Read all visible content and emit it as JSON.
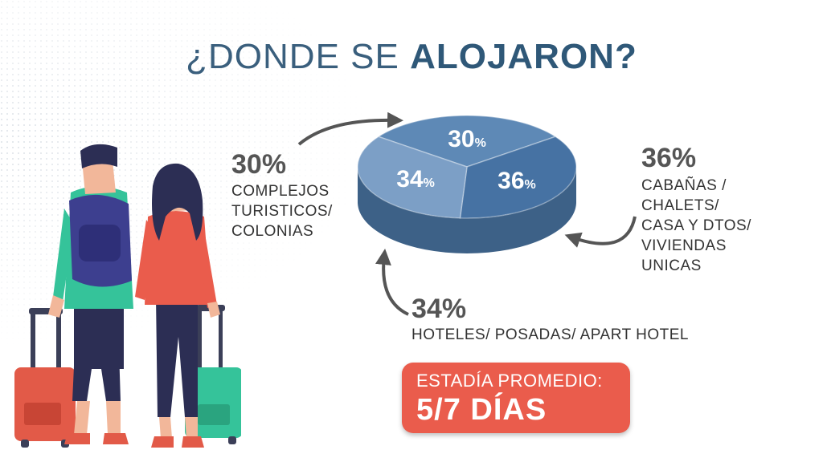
{
  "title": {
    "prefix": "¿DONDE SE ",
    "emphasis": "ALOJARON?"
  },
  "chart_data": {
    "type": "pie",
    "slices": [
      {
        "value": 30,
        "label": "30",
        "unit": "%",
        "category": [
          "COMPLEJOS",
          "TURISTICOS/",
          "COLONIAS"
        ],
        "color": "#5e89b6"
      },
      {
        "value": 36,
        "label": "36",
        "unit": "%",
        "category": [
          "CABAÑAS /",
          "CHALETS/",
          "CASA Y DTOS/",
          "VIVIENDAS",
          "UNICAS"
        ],
        "color": "#4672a3"
      },
      {
        "value": 34,
        "label": "34",
        "unit": "%",
        "category": [
          "HOTELES/ POSADAS/ APART HOTEL"
        ],
        "color": "#7c9fc6"
      }
    ]
  },
  "callouts": {
    "left": {
      "pct": "30%",
      "lines": [
        "COMPLEJOS",
        "TURISTICOS/",
        "COLONIAS"
      ]
    },
    "right": {
      "pct": "36%",
      "lines": [
        "CABAÑAS /",
        "CHALETS/",
        "CASA Y DTOS/",
        "VIVIENDAS",
        "UNICAS"
      ]
    },
    "bottom": {
      "pct": "34%",
      "lines": [
        "HOTELES/ POSADAS/ APART HOTEL"
      ]
    }
  },
  "stay": {
    "label": "ESTADÍA PROMEDIO:",
    "value": "5/7 DÍAS"
  },
  "colors": {
    "accent": "#ea5c4c",
    "pie_side": "#3d6187",
    "title": "#3a5f7d",
    "arrow": "#555555",
    "luggage_red": "#e25a48",
    "luggage_green": "#35c39a"
  }
}
